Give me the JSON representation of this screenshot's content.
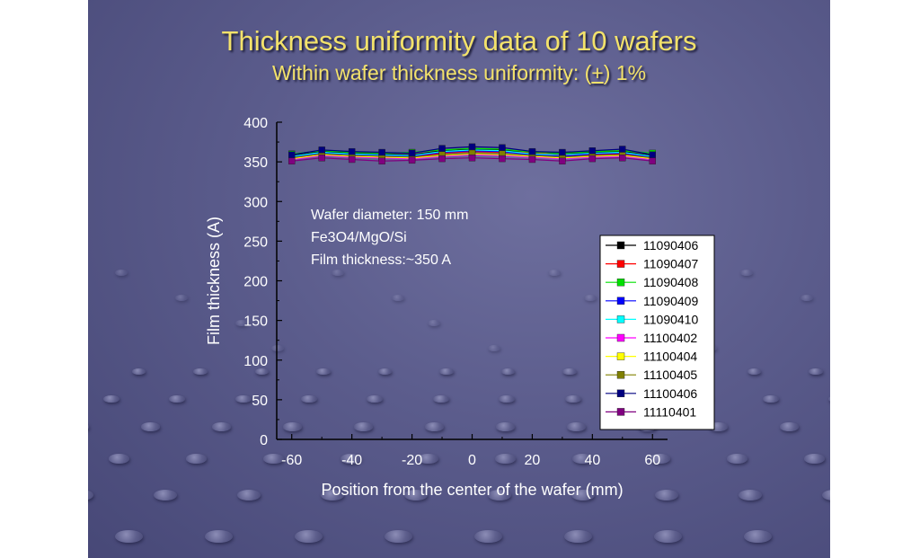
{
  "slide": {
    "title": "Thickness uniformity data of 10 wafers",
    "subtitle": {
      "before": "Within wafer thickness uniformity: (",
      "symbol": "+",
      "after": ") 1%"
    },
    "title_color": "#f3e26b",
    "background_color": "#5b5c8c"
  },
  "annotation": [
    "Wafer diameter: 150 mm",
    "Fe3O4/MgO/Si",
    "Film thickness:~350 A"
  ],
  "chart_data": {
    "type": "line",
    "title": "",
    "xlabel": "Position from the center of the wafer (mm)",
    "ylabel": "Film thickness (A)",
    "xlim": [
      -65,
      65
    ],
    "ylim": [
      0,
      400
    ],
    "x_ticks": [
      -60,
      -40,
      -20,
      0,
      20,
      40,
      60
    ],
    "y_ticks": [
      0,
      50,
      100,
      150,
      200,
      250,
      300,
      350,
      400
    ],
    "grid": false,
    "legend_position": "right",
    "marker": "square",
    "x": [
      -60,
      -50,
      -40,
      -30,
      -20,
      -10,
      0,
      10,
      20,
      30,
      40,
      50,
      60
    ],
    "series": [
      {
        "name": "11090406",
        "color": "#000000",
        "values": [
          358,
          363,
          361,
          360,
          359,
          364,
          366,
          365,
          361,
          360,
          362,
          363,
          358
        ]
      },
      {
        "name": "11090407",
        "color": "#ff0000",
        "values": [
          355,
          360,
          358,
          357,
          356,
          361,
          363,
          362,
          362,
          358,
          359,
          360,
          355
        ]
      },
      {
        "name": "11090408",
        "color": "#00e000",
        "values": [
          360,
          364,
          362,
          361,
          362,
          365,
          367,
          366,
          362,
          361,
          363,
          364,
          361
        ]
      },
      {
        "name": "11090409",
        "color": "#0000ff",
        "values": [
          356,
          361,
          359,
          358,
          357,
          362,
          364,
          363,
          359,
          357,
          360,
          361,
          356
        ]
      },
      {
        "name": "11090410",
        "color": "#00ffff",
        "values": [
          357,
          362,
          360,
          359,
          358,
          363,
          365,
          364,
          360,
          359,
          361,
          362,
          357
        ]
      },
      {
        "name": "11100402",
        "color": "#ff00ff",
        "values": [
          353,
          358,
          356,
          355,
          354,
          357,
          359,
          358,
          356,
          354,
          356,
          357,
          353
        ]
      },
      {
        "name": "11100404",
        "color": "#ffff00",
        "values": [
          354,
          359,
          357,
          356,
          355,
          358,
          360,
          359,
          357,
          355,
          357,
          358,
          354
        ]
      },
      {
        "name": "11100405",
        "color": "#808000",
        "values": [
          355,
          360,
          358,
          357,
          356,
          359,
          361,
          360,
          358,
          356,
          358,
          359,
          355
        ]
      },
      {
        "name": "11100406",
        "color": "#000080",
        "values": [
          359,
          365,
          363,
          362,
          361,
          367,
          369,
          368,
          363,
          362,
          364,
          366,
          359
        ]
      },
      {
        "name": "11110401",
        "color": "#800080",
        "values": [
          351,
          355,
          353,
          351,
          352,
          354,
          355,
          354,
          353,
          351,
          354,
          355,
          351
        ]
      }
    ]
  }
}
